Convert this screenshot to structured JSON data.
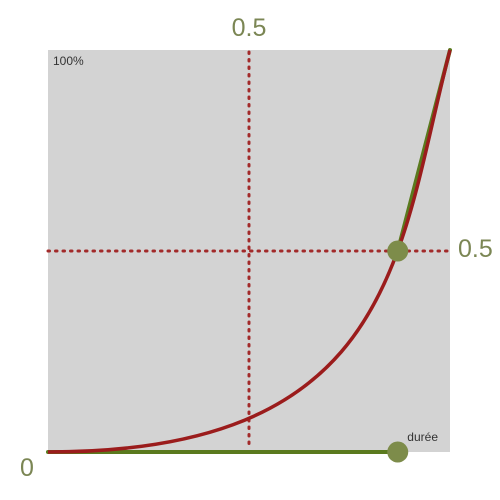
{
  "colors": {
    "plot_background": "#d3d3d3",
    "curve": "#9b1c1c",
    "handle": "#5a7a1e",
    "handle_dot": "#7d8c4a",
    "grid": "#a22a2a",
    "axis_label": "#7b8654"
  },
  "labels": {
    "top_tick": "0.5",
    "right_tick": "0.5",
    "origin": "0",
    "percent": "100%",
    "duration": "durée"
  },
  "chart_data": {
    "type": "bezier-curve",
    "description_values": {
      "p0": [
        0,
        0
      ],
      "p1": [
        0.87,
        0
      ],
      "p2": [
        0.87,
        0.5
      ],
      "p3": [
        1,
        1
      ]
    },
    "guides": {
      "x": 0.5,
      "y": 0.5
    },
    "x_range": [
      0,
      1
    ],
    "y_range": [
      0,
      1
    ]
  }
}
